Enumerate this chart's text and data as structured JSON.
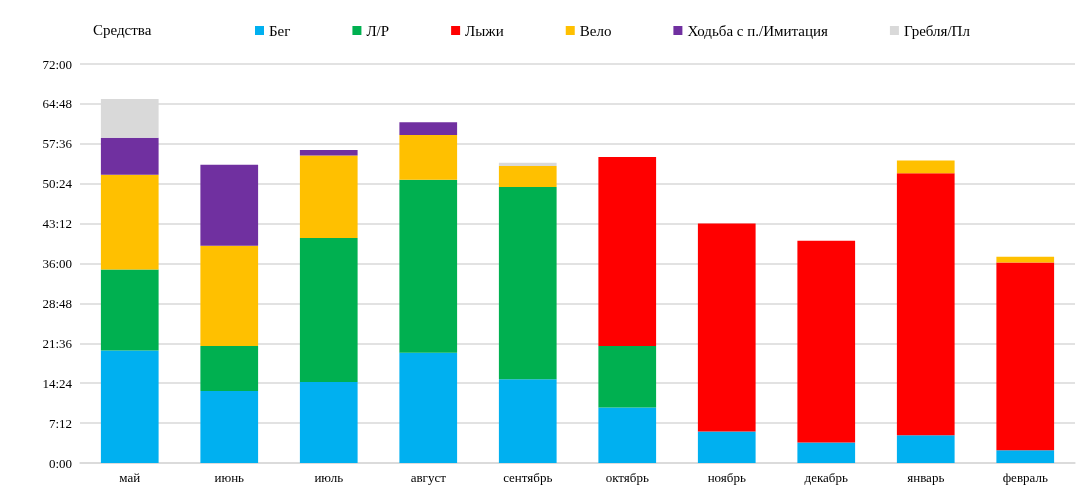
{
  "chart_data": {
    "type": "bar",
    "stacked": true,
    "legend_title": "Средства",
    "legend": "top",
    "grid": "y",
    "categories": [
      "май",
      "июнь",
      "июль",
      "август",
      "сентябрь",
      "октябрь",
      "ноябрь",
      "декабрь",
      "январь",
      "февраль"
    ],
    "series": [
      {
        "name": "Бег",
        "color": "#00b0f0",
        "values": [
          20.3,
          13.0,
          14.6,
          19.9,
          15.1,
          10.0,
          5.7,
          3.7,
          5.0,
          2.3
        ]
      },
      {
        "name": "Л/Р",
        "color": "#00b050",
        "values": [
          14.6,
          8.1,
          26.0,
          31.2,
          34.7,
          11.1,
          null,
          null,
          null,
          null
        ]
      },
      {
        "name": "Лыжи",
        "color": "#ff0000",
        "values": [
          null,
          null,
          null,
          null,
          null,
          34.1,
          37.5,
          36.4,
          47.3,
          33.9
        ]
      },
      {
        "name": "Вело",
        "color": "#ffc000",
        "values": [
          17.1,
          18.1,
          14.9,
          8.1,
          3.8,
          null,
          null,
          null,
          2.3,
          1.0
        ]
      },
      {
        "name": "Ходьба с п./Имитация",
        "color": "#7030a0",
        "values": [
          6.7,
          14.6,
          1.0,
          2.3,
          null,
          null,
          null,
          null,
          null,
          null
        ]
      },
      {
        "name": "Гребля/Пл",
        "color": "#d9d9d9",
        "values": [
          7.0,
          null,
          null,
          null,
          0.6,
          null,
          null,
          null,
          null,
          null
        ]
      }
    ],
    "ylim": [
      0,
      72
    ],
    "yticks": [
      {
        "value": 0,
        "label": "0:00"
      },
      {
        "value": 7.2,
        "label": "7:12"
      },
      {
        "value": 14.4,
        "label": "14:24"
      },
      {
        "value": 21.6,
        "label": "21:36"
      },
      {
        "value": 28.8,
        "label": "28:48"
      },
      {
        "value": 36,
        "label": "36:00"
      },
      {
        "value": 43.2,
        "label": "43:12"
      },
      {
        "value": 50.4,
        "label": "50:24"
      },
      {
        "value": 57.6,
        "label": "57:36"
      },
      {
        "value": 64.8,
        "label": "64:48"
      },
      {
        "value": 72,
        "label": "72:00"
      }
    ]
  }
}
